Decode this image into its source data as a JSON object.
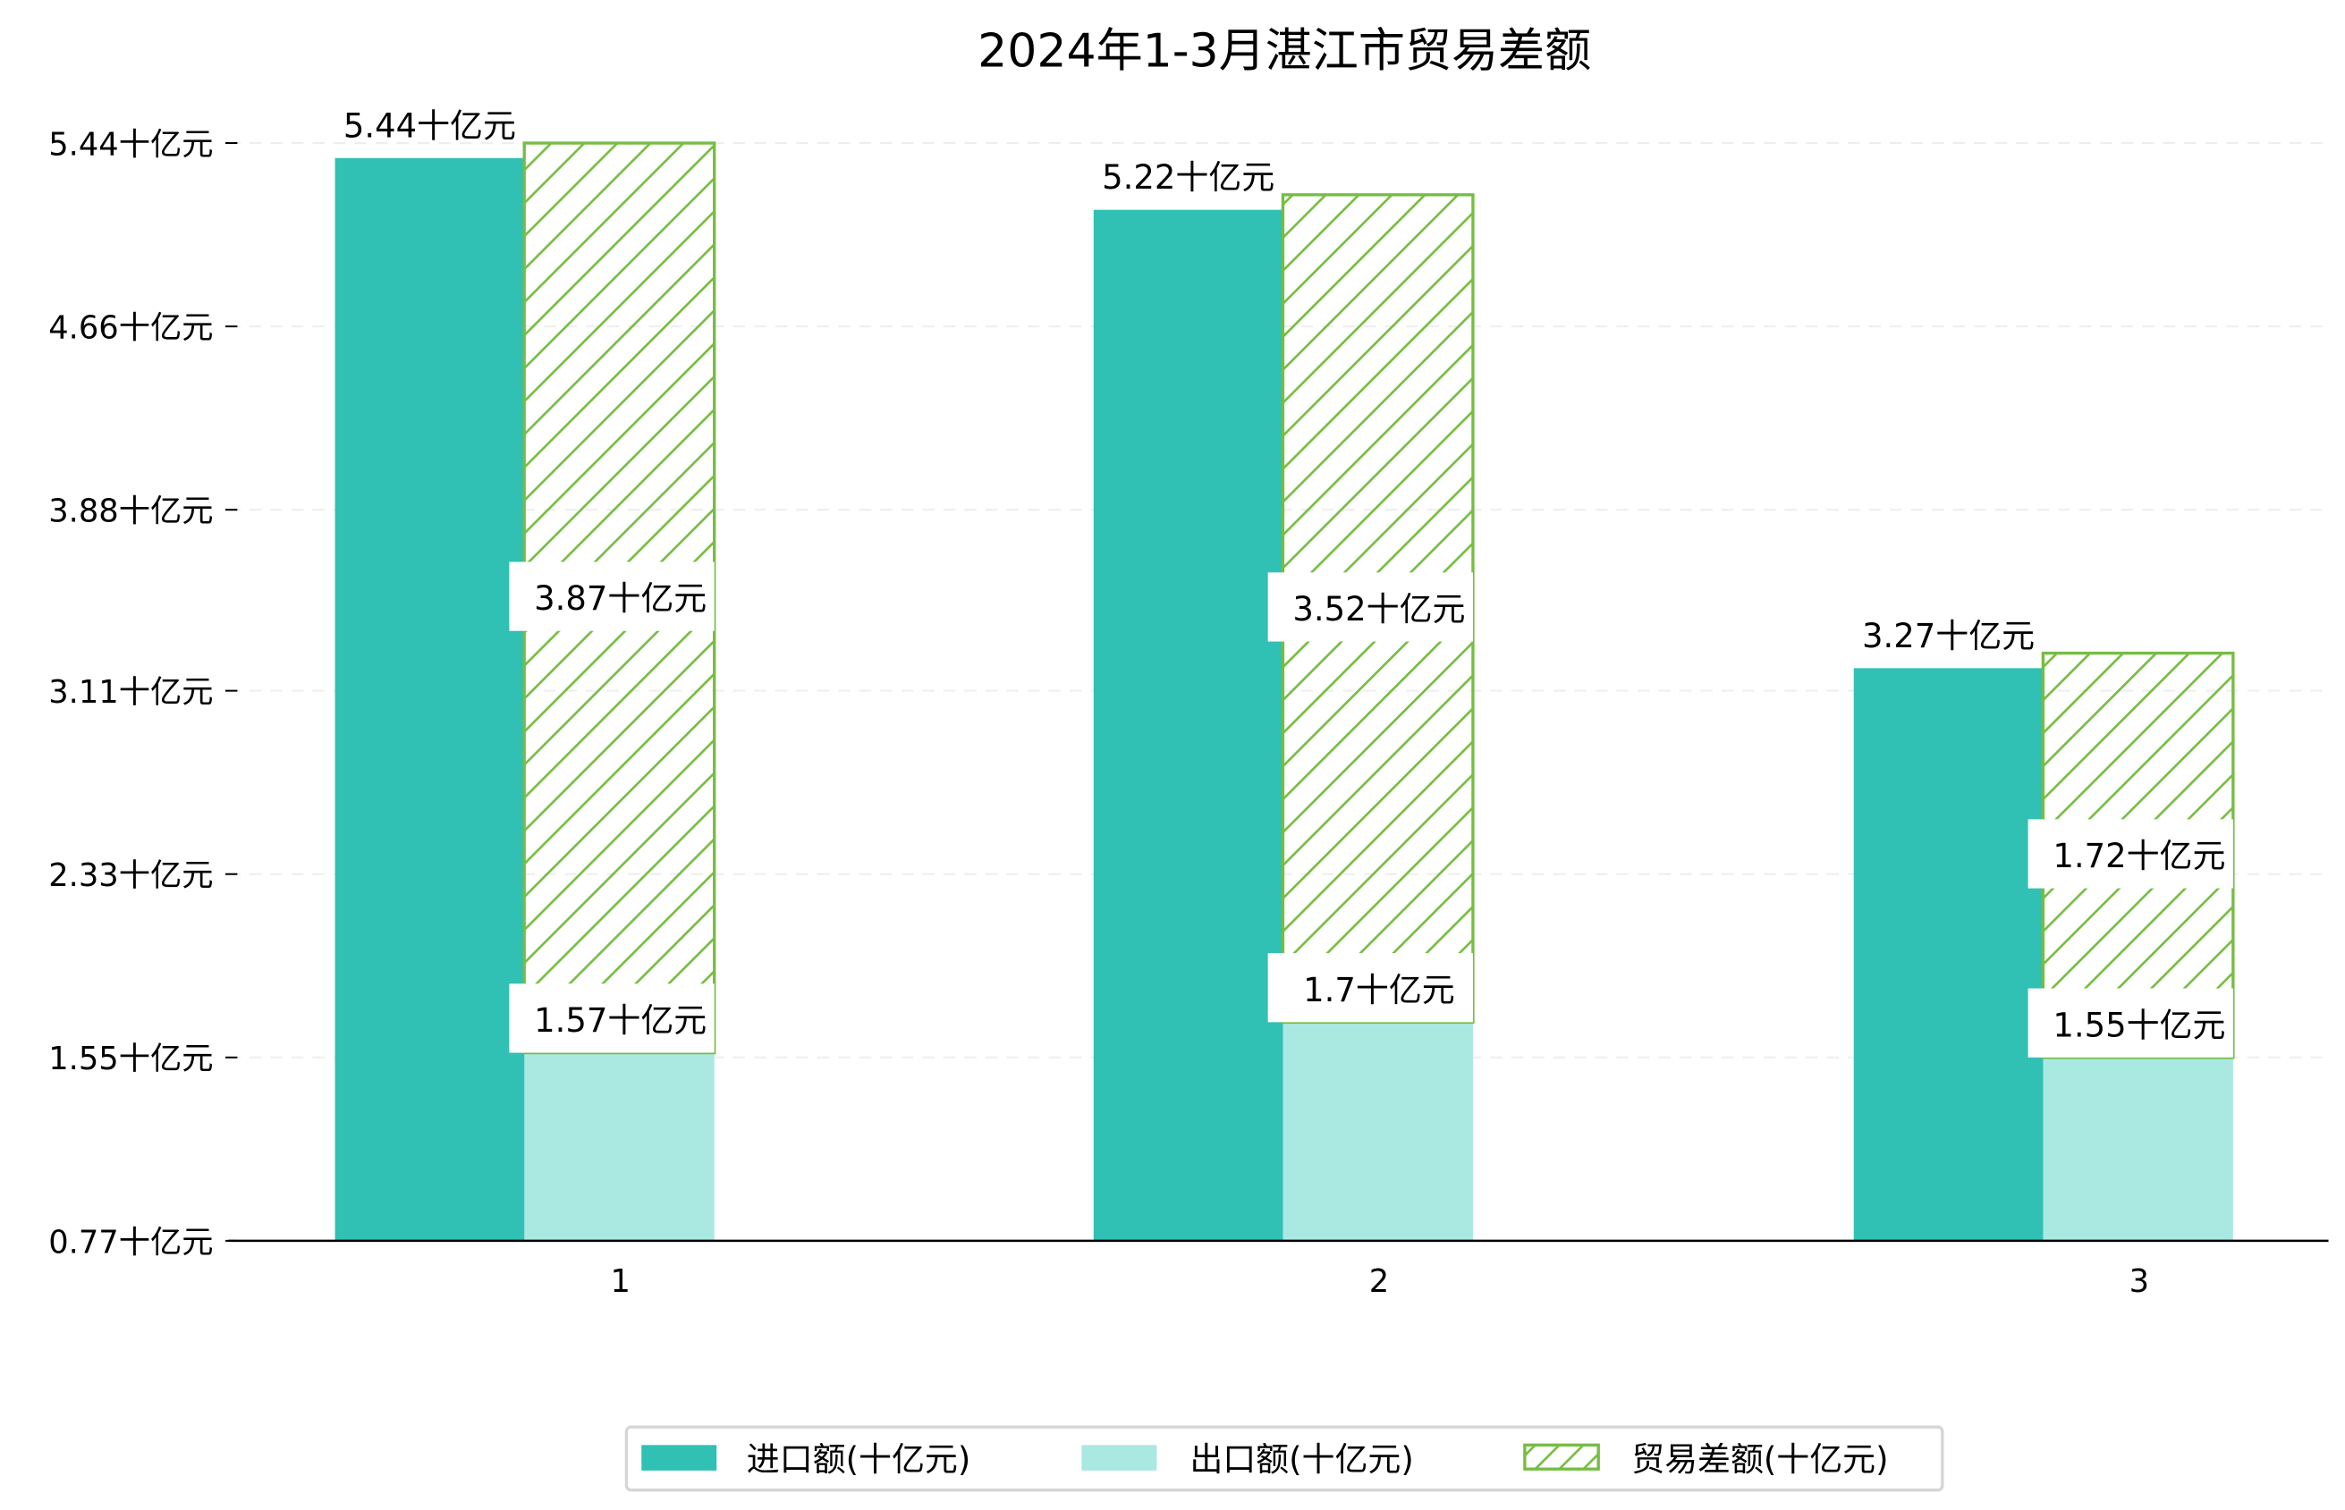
{
  "chart_data": {
    "type": "bar",
    "title": "2024年1-3月湛江市贸易差额",
    "xlabel": "",
    "ylabel": "",
    "categories": [
      "1",
      "2",
      "3"
    ],
    "unit_suffix": "十亿元",
    "yticks": [
      "0.77十亿元",
      "1.55十亿元",
      "2.33十亿元",
      "3.11十亿元",
      "3.88十亿元",
      "4.66十亿元",
      "5.44十亿元"
    ],
    "ytick_values": [
      0.77,
      1.55,
      2.33,
      3.11,
      3.88,
      4.66,
      5.44
    ],
    "ylim": [
      0.77,
      5.44
    ],
    "grid": true,
    "legend_position": "bottom-center",
    "series": [
      {
        "name": "进口额(十亿元)",
        "values": [
          5.44,
          5.22,
          3.27
        ],
        "labels": [
          "5.44十亿元",
          "5.22十亿元",
          "3.27十亿元"
        ],
        "color": "#30c0b4"
      },
      {
        "name": "出口额(十亿元)",
        "values": [
          1.57,
          1.7,
          1.55
        ],
        "labels": [
          "1.57十亿元",
          "1.7十亿元",
          "1.55十亿元"
        ],
        "color": "#aae8e2"
      },
      {
        "name": "贸易差额(十亿元)",
        "values": [
          3.87,
          3.52,
          1.72
        ],
        "labels": [
          "3.87十亿元",
          "3.52十亿元",
          "1.72十亿元"
        ],
        "color": "#76bd43",
        "stacked_on": "出口额(十亿元)",
        "hatch": "/"
      }
    ]
  }
}
